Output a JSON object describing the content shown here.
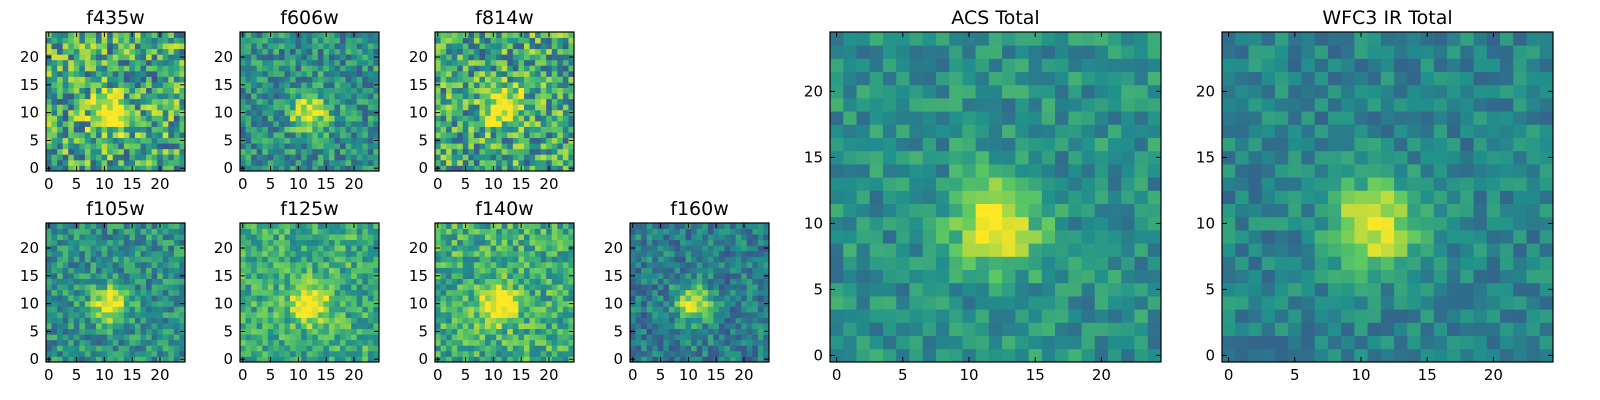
{
  "chart_data": [
    {
      "type": "heatmap",
      "title": "f435w",
      "grid": [
        25,
        25
      ],
      "xticks": [
        0,
        5,
        10,
        15,
        20
      ],
      "yticks": [
        0,
        5,
        10,
        15,
        20
      ],
      "peak": [
        11,
        10
      ],
      "noise": 0.34,
      "base": 0.6,
      "seed": 11
    },
    {
      "type": "heatmap",
      "title": "f606w",
      "grid": [
        25,
        25
      ],
      "xticks": [
        0,
        5,
        10,
        15,
        20
      ],
      "yticks": [
        0,
        5,
        10,
        15,
        20
      ],
      "peak": [
        12,
        10
      ],
      "noise": 0.22,
      "base": 0.5,
      "seed": 23
    },
    {
      "type": "heatmap",
      "title": "f814w",
      "grid": [
        25,
        25
      ],
      "xticks": [
        0,
        5,
        10,
        15,
        20
      ],
      "yticks": [
        0,
        5,
        10,
        15,
        20
      ],
      "peak": [
        12,
        11
      ],
      "noise": 0.32,
      "base": 0.6,
      "seed": 37
    },
    {
      "type": "heatmap",
      "title": "f105w",
      "grid": [
        25,
        25
      ],
      "xticks": [
        0,
        5,
        10,
        15,
        20
      ],
      "yticks": [
        0,
        5,
        10,
        15,
        20
      ],
      "peak": [
        11,
        10
      ],
      "noise": 0.2,
      "base": 0.5,
      "seed": 41
    },
    {
      "type": "heatmap",
      "title": "f125w",
      "grid": [
        25,
        25
      ],
      "xticks": [
        0,
        5,
        10,
        15,
        20
      ],
      "yticks": [
        0,
        5,
        10,
        15,
        20
      ],
      "peak": [
        12,
        10
      ],
      "noise": 0.2,
      "base": 0.62,
      "seed": 53
    },
    {
      "type": "heatmap",
      "title": "f140w",
      "grid": [
        25,
        25
      ],
      "xticks": [
        0,
        5,
        10,
        15,
        20
      ],
      "yticks": [
        0,
        5,
        10,
        15,
        20
      ],
      "peak": [
        11,
        10
      ],
      "noise": 0.22,
      "base": 0.63,
      "seed": 67
    },
    {
      "type": "heatmap",
      "title": "f160w",
      "grid": [
        25,
        25
      ],
      "xticks": [
        0,
        5,
        10,
        15,
        20
      ],
      "yticks": [
        0,
        5,
        10,
        15,
        20
      ],
      "peak": [
        11,
        10
      ],
      "noise": 0.18,
      "base": 0.42,
      "seed": 79
    },
    {
      "type": "heatmap",
      "title": "ACS Total",
      "grid": [
        25,
        25
      ],
      "xticks": [
        0,
        5,
        10,
        15,
        20
      ],
      "yticks": [
        0,
        5,
        10,
        15,
        20
      ],
      "peak": [
        12,
        10
      ],
      "noise": 0.15,
      "base": 0.5,
      "seed": 89
    },
    {
      "type": "heatmap",
      "title": "WFC3 IR Total",
      "grid": [
        25,
        25
      ],
      "xticks": [
        0,
        5,
        10,
        15,
        20
      ],
      "yticks": [
        0,
        5,
        10,
        15,
        20
      ],
      "peak": [
        11,
        10
      ],
      "noise": 0.13,
      "base": 0.45,
      "seed": 97
    }
  ],
  "colors": {
    "colormap": [
      "#440154",
      "#3b528b",
      "#21918c",
      "#5ec962",
      "#fde725"
    ],
    "background": "#ffffff"
  }
}
